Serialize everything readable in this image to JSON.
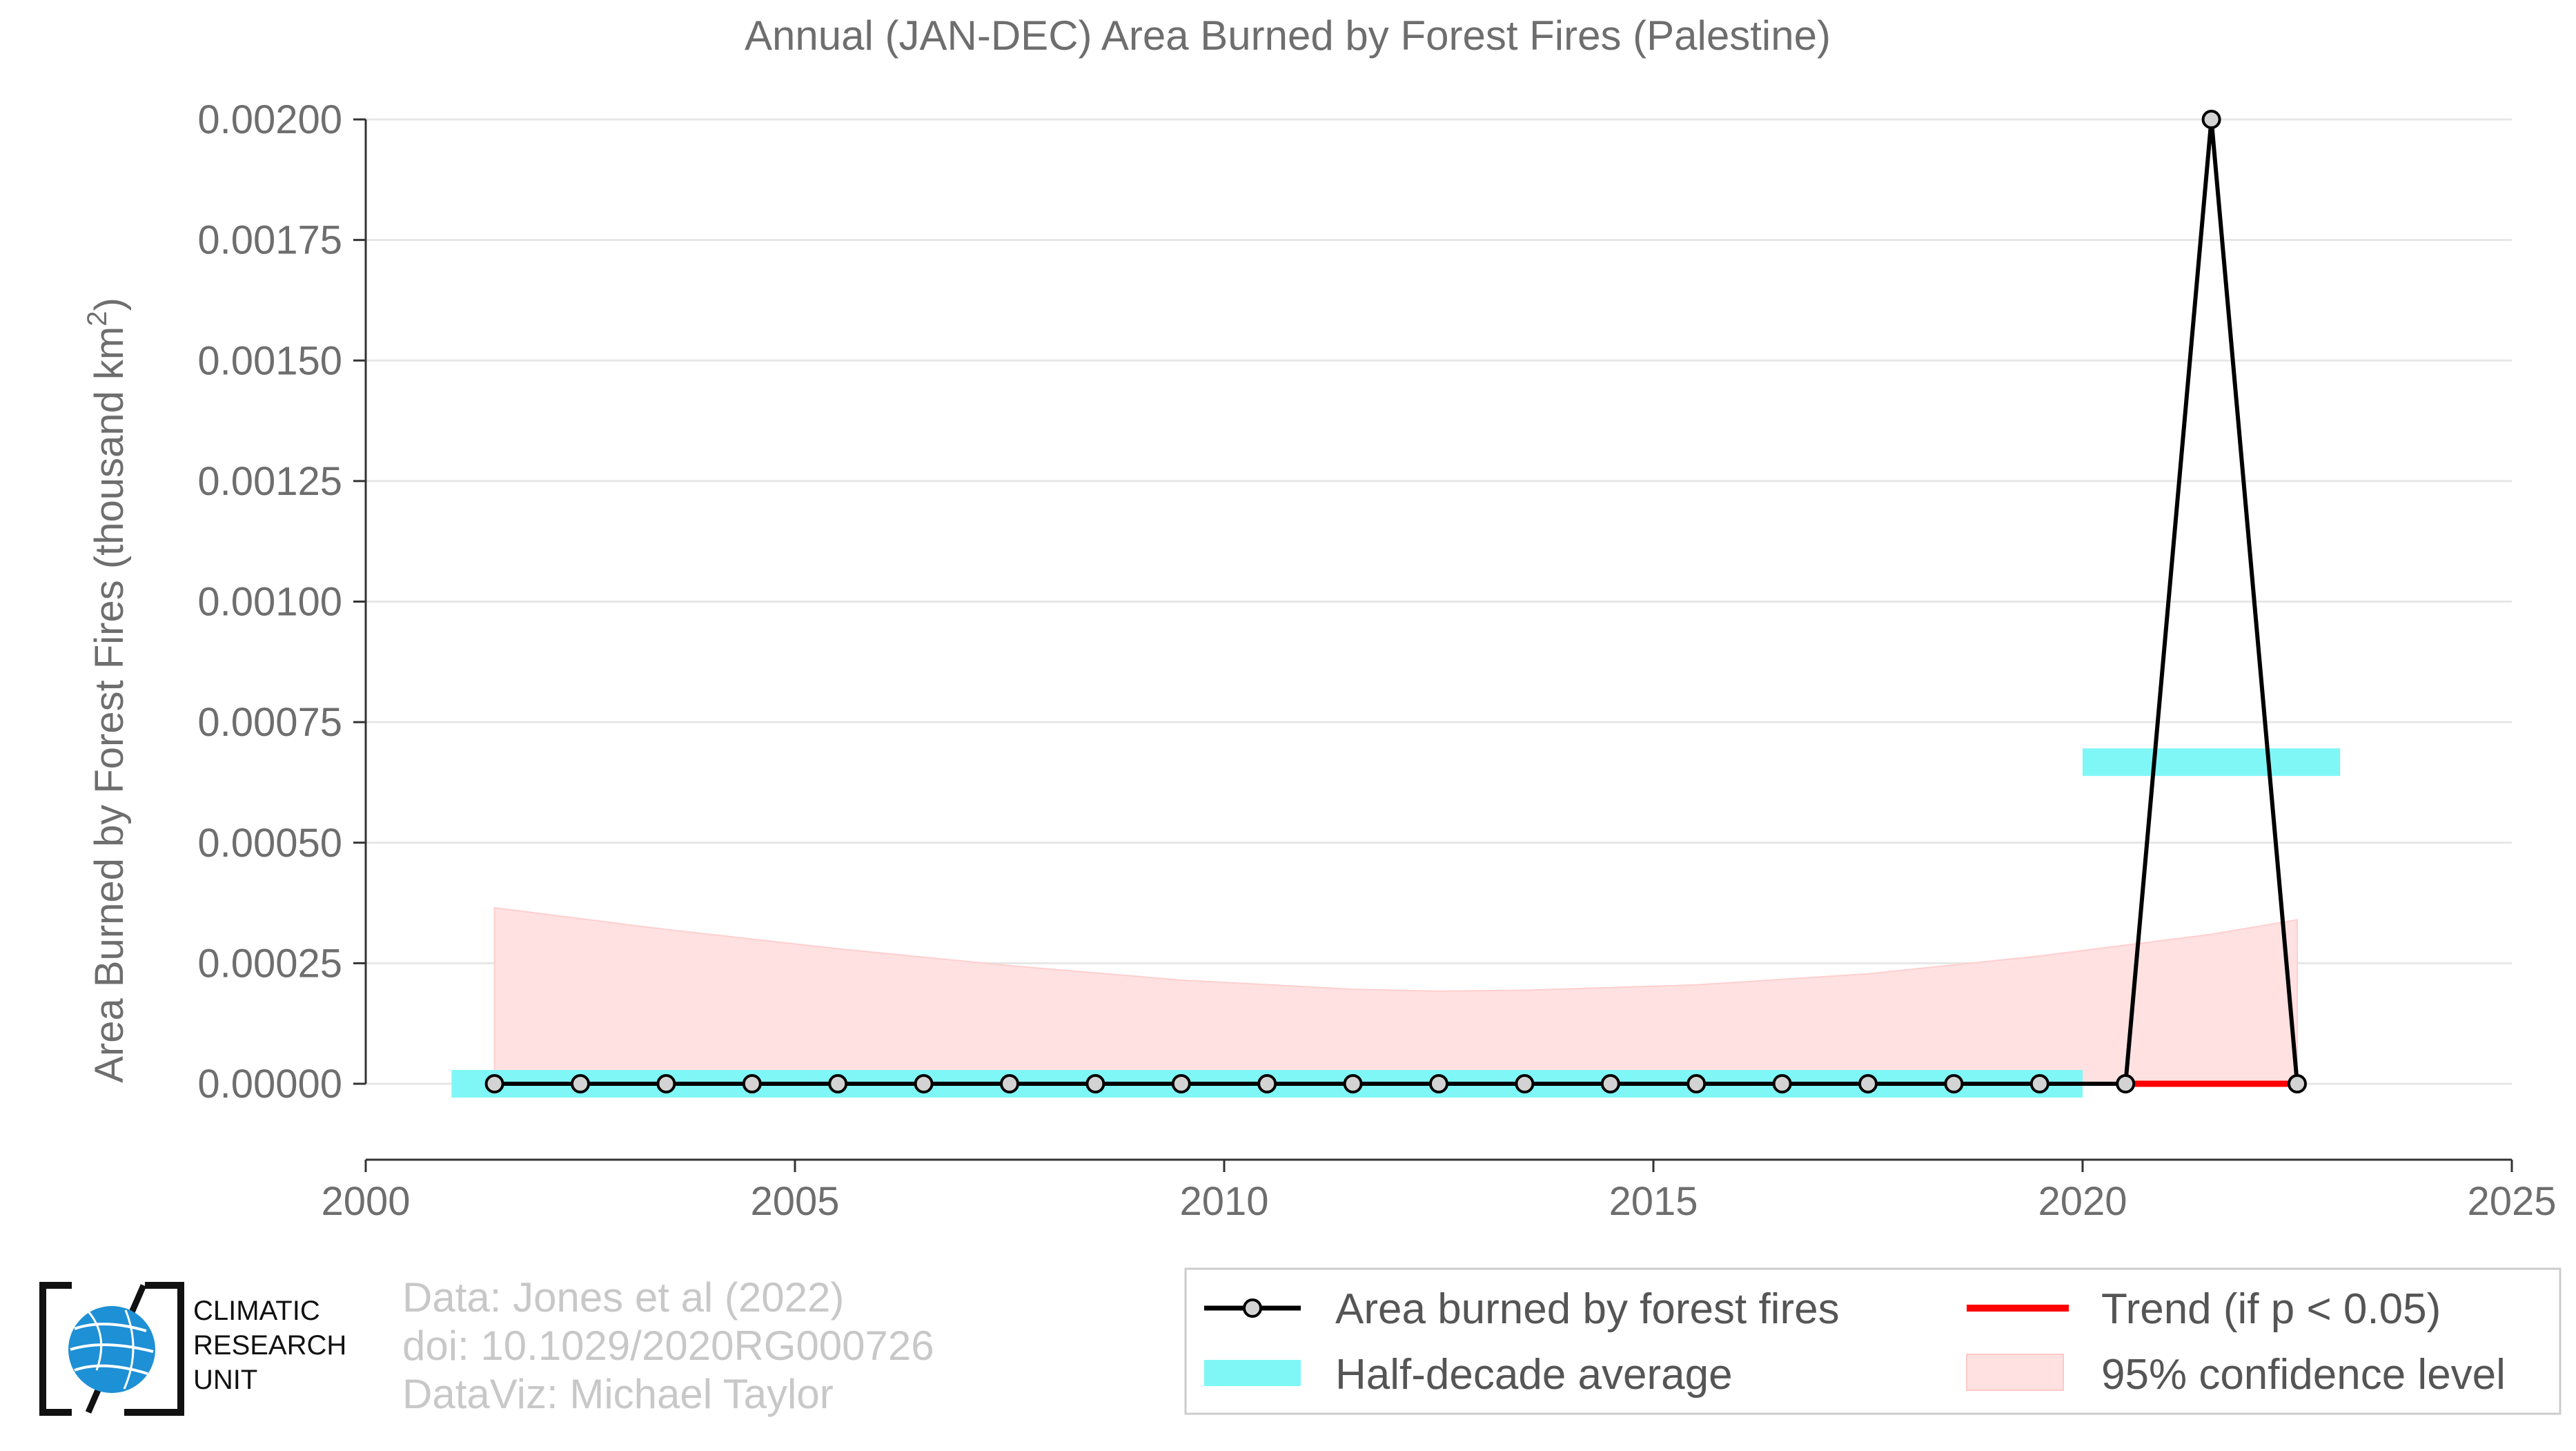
{
  "chart_data": {
    "type": "line",
    "title": "Annual (JAN-DEC) Area Burned by Forest Fires (Palestine)",
    "ylabel": "Area Burned by Forest Fires (thousand km",
    "ylabel_sup": "2",
    "ylabel_end": ")",
    "xlim": [
      2000,
      2025
    ],
    "ylim": [
      0,
      0.002
    ],
    "x_ticks": [
      "2000",
      "2005",
      "2010",
      "2015",
      "2020",
      "2025"
    ],
    "y_ticks": [
      "0.00000",
      "0.00025",
      "0.00050",
      "0.00075",
      "0.00100",
      "0.00125",
      "0.00150",
      "0.00175",
      "0.00200"
    ],
    "x_tick_values": [
      2000,
      2005,
      2010,
      2015,
      2020,
      2025
    ],
    "y_tick_values": [
      0,
      0.00025,
      0.0005,
      0.00075,
      0.001,
      0.00125,
      0.0015,
      0.00175,
      0.002
    ],
    "grid": true,
    "series": [
      {
        "name": "Area burned by forest fires",
        "color": "#000000",
        "x": [
          2001.5,
          2002.5,
          2003.5,
          2004.5,
          2005.5,
          2006.5,
          2007.5,
          2008.5,
          2009.5,
          2010.5,
          2011.5,
          2012.5,
          2013.5,
          2014.5,
          2015.5,
          2016.5,
          2017.5,
          2018.5,
          2019.5,
          2020.5,
          2021.5,
          2022.5
        ],
        "values": [
          0,
          0,
          0,
          0,
          0,
          0,
          0,
          0,
          0,
          0,
          0,
          0,
          0,
          0,
          0,
          0,
          0,
          0,
          0,
          0,
          0.002,
          0
        ]
      }
    ],
    "half_decade_average": {
      "name": "Half-decade average",
      "color": "#7ff7f7",
      "segments": [
        {
          "x0": 2001,
          "x1": 2020,
          "value": 0
        },
        {
          "x0": 2020,
          "x1": 2023,
          "value": 0.000667
        }
      ]
    },
    "trend": {
      "name": "Trend (if p < 0.05)",
      "color": "#ff0000",
      "x": [
        2020.5,
        2022.5
      ],
      "values": [
        0,
        0
      ]
    },
    "confidence_band": {
      "name": "95% confidence level",
      "color": "#ffe1e1",
      "x": [
        2001.5,
        2003.5,
        2005.5,
        2007.5,
        2009.5,
        2011.5,
        2012.5,
        2013.5,
        2015.5,
        2017.5,
        2019.5,
        2021.5,
        2022.5
      ],
      "upper": [
        0.000365,
        0.00032,
        0.00028,
        0.000245,
        0.000215,
        0.000196,
        0.000192,
        0.000194,
        0.000205,
        0.000228,
        0.000265,
        0.00031,
        0.00034
      ],
      "lower": [
        0,
        0,
        0,
        0,
        0,
        0,
        0,
        0,
        0,
        0,
        0,
        0,
        0
      ]
    },
    "legend_position": "bottom-right"
  },
  "credits": {
    "line1": "Data: Jones et al (2022)",
    "line2": "doi: 10.1029/2020RG000726",
    "line3": "DataViz: Michael Taylor"
  },
  "logo": {
    "line1": "CLIMATIC",
    "line2": "RESEARCH",
    "line3": "UNIT",
    "icon": "globe-icon"
  },
  "legend": {
    "items": [
      {
        "label": "Area burned by forest fires",
        "key": "line-marker"
      },
      {
        "label": "Trend (if p < 0.05)",
        "key": "red-line"
      },
      {
        "label": "Half-decade average",
        "key": "cyan-bar"
      },
      {
        "label": "95% confidence level",
        "key": "pink-box"
      }
    ]
  }
}
